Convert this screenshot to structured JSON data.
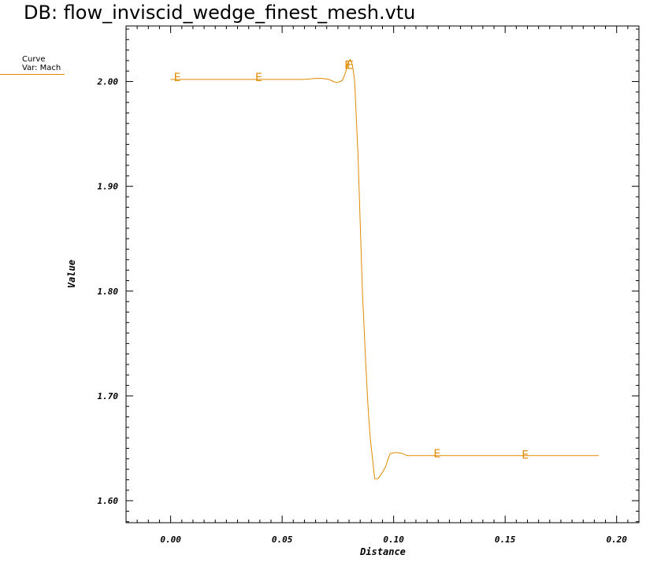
{
  "header": {
    "title": "DB: flow_inviscid_wedge_finest_mesh.vtu"
  },
  "legend": {
    "line1": "Curve",
    "line2": "Var: Mach",
    "color": "#e08a00"
  },
  "chart_data": {
    "type": "line",
    "xlabel": "Distance",
    "ylabel": "Value",
    "xlim": [
      -0.02,
      0.21
    ],
    "ylim": [
      1.579,
      2.053
    ],
    "x_ticks": [
      0.0,
      0.05,
      0.1,
      0.15,
      0.2
    ],
    "x_tick_labels": [
      "0.00",
      "0.05",
      "0.10",
      "0.15",
      "0.20"
    ],
    "y_ticks": [
      1.6,
      1.7,
      1.8,
      1.9,
      2.0
    ],
    "y_tick_labels": [
      "1.60",
      "1.70",
      "1.80",
      "1.90",
      "2.00"
    ],
    "grid": false,
    "series": [
      {
        "color": "#e08a00",
        "marker": "E",
        "x": [
          0.0,
          0.02,
          0.04,
          0.06,
          0.065,
          0.068,
          0.071,
          0.073,
          0.0745,
          0.076,
          0.077,
          0.0785,
          0.0795,
          0.0805,
          0.0815,
          0.0825,
          0.084,
          0.086,
          0.0875,
          0.0885,
          0.0895,
          0.0905,
          0.0915,
          0.093,
          0.095,
          0.0965,
          0.0975,
          0.0985,
          0.101,
          0.104,
          0.106,
          0.12,
          0.14,
          0.16,
          0.18,
          0.192
        ],
        "y": [
          2.002,
          2.002,
          2.002,
          2.002,
          2.003,
          2.003,
          2.002,
          2.0,
          1.999,
          2.0,
          2.001,
          2.009,
          2.018,
          2.021,
          2.016,
          2.001,
          1.93,
          1.8,
          1.73,
          1.69,
          1.66,
          1.64,
          1.621,
          1.621,
          1.627,
          1.633,
          1.64,
          1.645,
          1.646,
          1.645,
          1.643,
          1.643,
          1.643,
          1.643,
          1.643,
          1.643
        ],
        "marker_x": [
          0.003,
          0.0395,
          0.0795,
          0.0805,
          0.1195,
          0.159
        ],
        "marker_y": [
          2.004,
          2.004,
          2.016,
          2.016,
          1.645,
          1.644
        ]
      }
    ]
  }
}
